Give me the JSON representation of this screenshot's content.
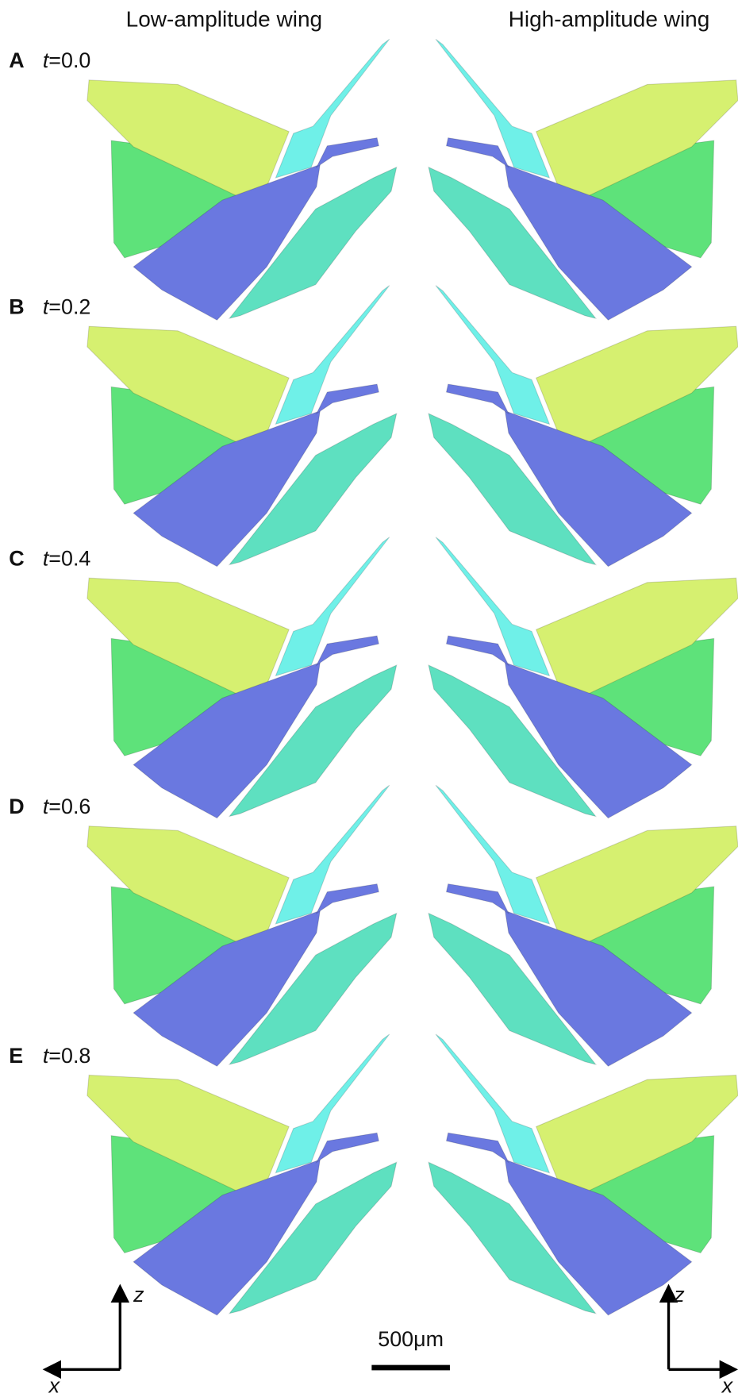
{
  "headers": {
    "left": "Low-amplitude wing",
    "right": "High-amplitude wing"
  },
  "panels": [
    {
      "letter": "A",
      "variable": "t",
      "value": "=0.0"
    },
    {
      "letter": "B",
      "variable": "t",
      "value": "=0.2"
    },
    {
      "letter": "C",
      "variable": "t",
      "value": "=0.4"
    },
    {
      "letter": "D",
      "variable": "t",
      "value": "=0.6"
    },
    {
      "letter": "E",
      "variable": "t",
      "value": "=0.8"
    }
  ],
  "axes": {
    "left": {
      "vertical": "z",
      "horizontal": "x"
    },
    "right": {
      "vertical": "z",
      "horizontal": "x"
    }
  },
  "scale_bar": "500μm"
}
